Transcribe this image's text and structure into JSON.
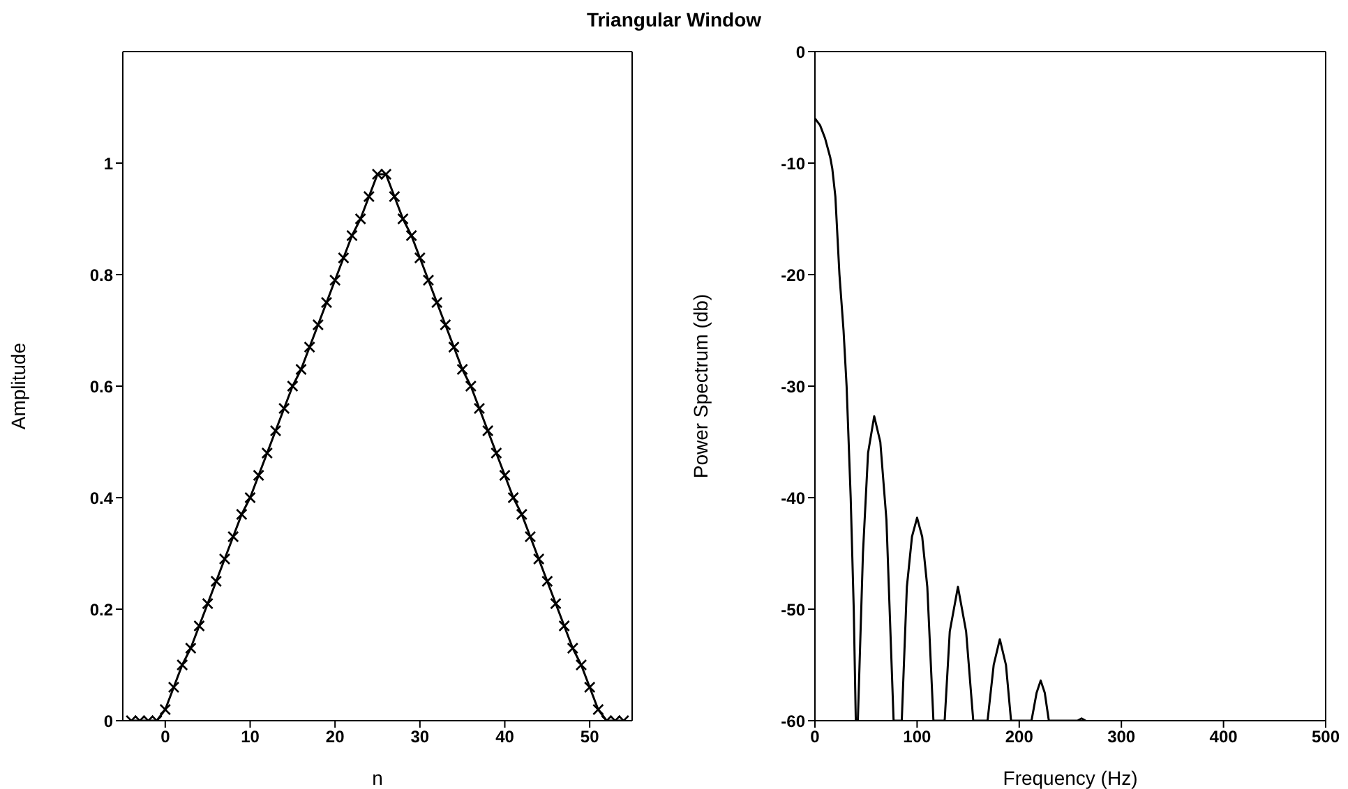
{
  "chart_data": [
    {
      "type": "line",
      "title": "Triangular Window",
      "xlabel": "n",
      "ylabel": "Amplitude",
      "marker": "cross",
      "color": "#000000",
      "x": [
        -4,
        -3,
        -2,
        -1,
        0,
        1,
        2,
        3,
        4,
        5,
        6,
        7,
        8,
        9,
        10,
        11,
        12,
        13,
        14,
        15,
        16,
        17,
        18,
        19,
        20,
        21,
        22,
        23,
        24,
        25,
        26,
        27,
        28,
        29,
        30,
        31,
        32,
        33,
        34,
        35,
        36,
        37,
        38,
        39,
        40,
        41,
        42,
        43,
        44,
        45,
        46,
        47,
        48,
        49,
        50,
        51,
        52,
        53,
        54
      ],
      "values": [
        0,
        0,
        0,
        0,
        0.02,
        0.06,
        0.1,
        0.13,
        0.17,
        0.21,
        0.25,
        0.29,
        0.33,
        0.37,
        0.4,
        0.44,
        0.48,
        0.52,
        0.56,
        0.6,
        0.63,
        0.67,
        0.71,
        0.75,
        0.79,
        0.83,
        0.87,
        0.9,
        0.94,
        0.98,
        0.98,
        0.94,
        0.9,
        0.87,
        0.83,
        0.79,
        0.75,
        0.71,
        0.67,
        0.63,
        0.6,
        0.56,
        0.52,
        0.48,
        0.44,
        0.4,
        0.37,
        0.33,
        0.29,
        0.25,
        0.21,
        0.17,
        0.13,
        0.1,
        0.06,
        0.02,
        0,
        0,
        0
      ],
      "xlim": [
        -5,
        55
      ],
      "ylim": [
        0,
        1.2
      ],
      "xticks": [
        0,
        10,
        20,
        30,
        40,
        50
      ],
      "yticks": [
        0,
        0.2,
        0.4,
        0.6,
        0.8,
        1
      ]
    },
    {
      "type": "line",
      "xlabel": "Frequency (Hz)",
      "ylabel": "Power Spectrum (db)",
      "color": "#000000",
      "x": [
        0,
        5,
        10,
        15,
        17,
        20,
        24,
        28,
        31,
        35,
        38,
        40,
        42,
        47,
        52,
        58,
        64,
        70,
        77,
        85,
        90,
        95,
        100,
        105,
        110,
        116,
        127,
        132,
        140,
        148,
        155,
        169,
        175,
        181,
        187,
        192,
        212,
        217,
        221,
        225,
        229,
        257,
        261,
        265
      ],
      "values": [
        -6,
        -6.6,
        -7.8,
        -9.5,
        -10.5,
        -13,
        -20,
        -25,
        -30,
        -40,
        -50,
        -60,
        -60,
        -45,
        -36,
        -32.7,
        -35,
        -42,
        -60,
        -60,
        -48,
        -43.5,
        -41.8,
        -43.5,
        -48,
        -60,
        -60,
        -52,
        -48,
        -52,
        -60,
        -60,
        -55,
        -52.7,
        -55,
        -60,
        -60,
        -57.5,
        -56.4,
        -57.5,
        -60,
        -60,
        -59.8,
        -60
      ],
      "xlim": [
        0,
        500
      ],
      "ylim": [
        -60,
        0
      ],
      "xticks": [
        0,
        100,
        200,
        300,
        400,
        500
      ],
      "yticks": [
        -60,
        -50,
        -40,
        -30,
        -20,
        -10,
        0
      ]
    }
  ]
}
